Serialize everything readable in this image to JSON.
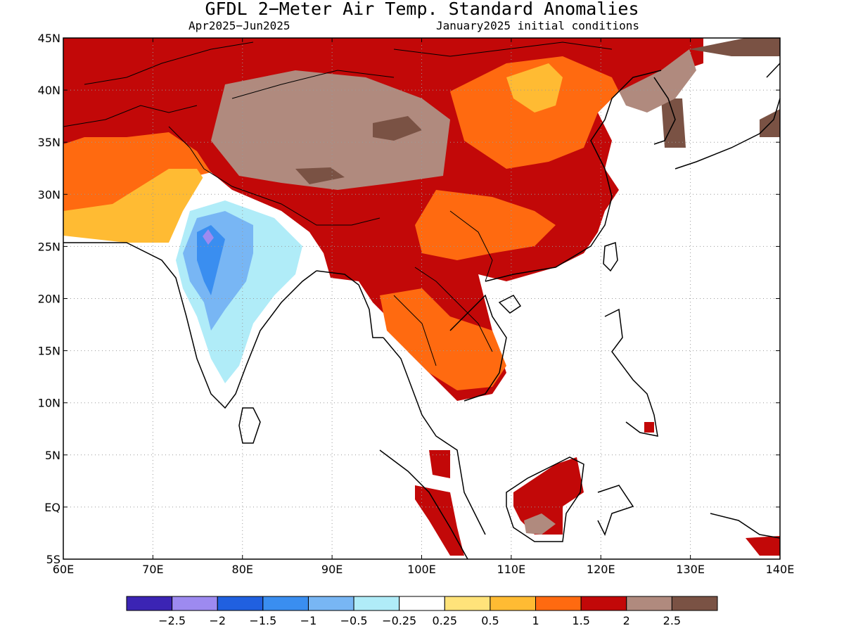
{
  "title": "GFDL 2−Meter Air Temp. Standard Anomalies",
  "subtitle_left": "Apr2025−Jun2025",
  "subtitle_right": "January2025 initial conditions",
  "map": {
    "lon_range": [
      60,
      140
    ],
    "lat_range": [
      -5,
      45
    ],
    "lon_ticks": [
      "60E",
      "70E",
      "80E",
      "90E",
      "100E",
      "110E",
      "120E",
      "130E",
      "140E"
    ],
    "lat_ticks": [
      "45N",
      "40N",
      "35N",
      "30N",
      "25N",
      "20N",
      "15N",
      "10N",
      "5N",
      "EQ",
      "5S"
    ],
    "gridlines": "dotted"
  },
  "colorbar": {
    "colors": [
      "#3b24b4",
      "#9d8af0",
      "#2060e0",
      "#3a8ef0",
      "#78b6f4",
      "#b0ecf8",
      "#ffffff",
      "#ffe37a",
      "#ffbb33",
      "#ff6a10",
      "#c20808",
      "#b08a7e",
      "#7a5244"
    ],
    "labels": [
      "−2.5",
      "−2",
      "−1.5",
      "−1",
      "−0.5",
      "−0.25",
      "0.25",
      "0.5",
      "1",
      "1.5",
      "2",
      "2.5"
    ]
  }
}
